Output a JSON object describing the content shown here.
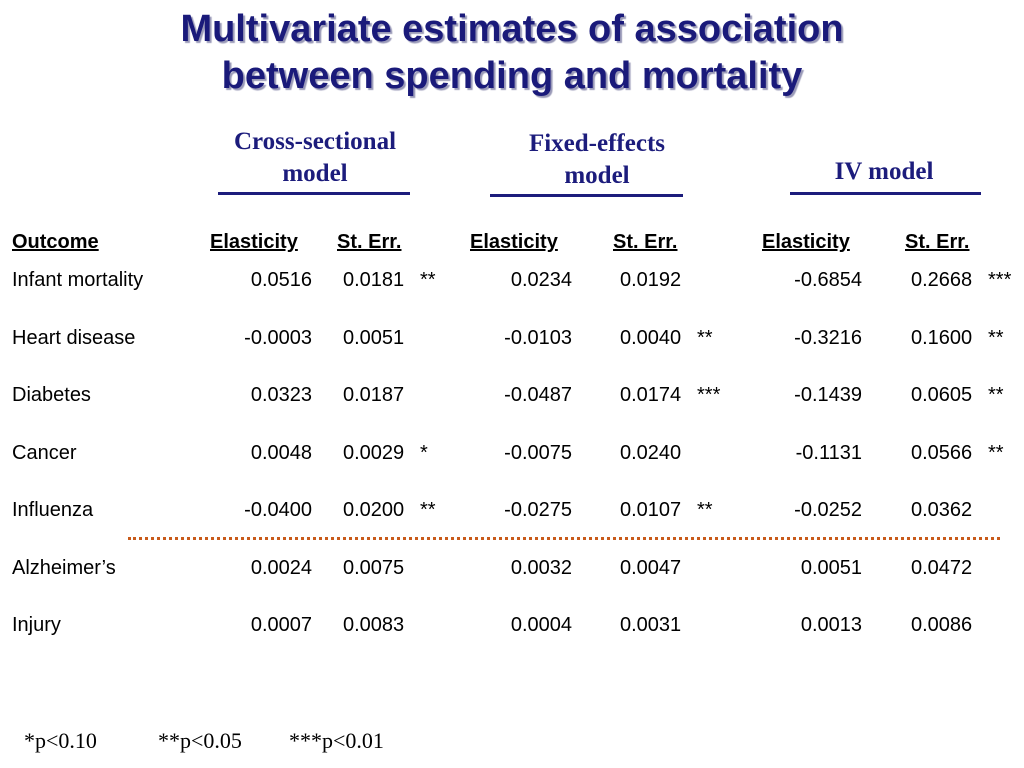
{
  "title": [
    "Multivariate estimates of association",
    "between spending and mortality"
  ],
  "models": [
    {
      "lines": [
        "Cross-sectional",
        "model"
      ]
    },
    {
      "lines": [
        "Fixed-effects",
        "model"
      ]
    },
    {
      "lines": [
        "IV  model"
      ]
    }
  ],
  "headers": [
    "Outcome",
    "Elasticity",
    "St. Err.",
    "Elasticity",
    "St. Err.",
    "Elasticity",
    "St. Err."
  ],
  "rows": [
    {
      "outcome": "Infant mortality",
      "cs_e": "0.0516",
      "cs_se": "0.0181",
      "cs_sig": "**",
      "fe_e": "0.0234",
      "fe_se": "0.0192",
      "fe_sig": "",
      "iv_e": "-0.6854",
      "iv_se": "0.2668",
      "iv_sig": "***"
    },
    {
      "outcome": "Heart disease",
      "cs_e": "-0.0003",
      "cs_se": "0.0051",
      "cs_sig": "",
      "fe_e": "-0.0103",
      "fe_se": "0.0040",
      "fe_sig": "**",
      "iv_e": "-0.3216",
      "iv_se": "0.1600",
      "iv_sig": "**"
    },
    {
      "outcome": "Diabetes",
      "cs_e": "0.0323",
      "cs_se": "0.0187",
      "cs_sig": "",
      "fe_e": "-0.0487",
      "fe_se": "0.0174",
      "fe_sig": "***",
      "iv_e": "-0.1439",
      "iv_se": "0.0605",
      "iv_sig": "**"
    },
    {
      "outcome": "Cancer",
      "cs_e": "0.0048",
      "cs_se": "0.0029",
      "cs_sig": "*",
      "fe_e": "-0.0075",
      "fe_se": "0.0240",
      "fe_sig": "",
      "iv_e": "-0.1131",
      "iv_se": "0.0566",
      "iv_sig": "**"
    },
    {
      "outcome": "Influenza",
      "cs_e": "-0.0400",
      "cs_se": "0.0200",
      "cs_sig": "**",
      "fe_e": "-0.0275",
      "fe_se": "0.0107",
      "fe_sig": "**",
      "iv_e": "-0.0252",
      "iv_se": "0.0362",
      "iv_sig": ""
    },
    {
      "outcome": "Alzheimer’s",
      "cs_e": "0.0024",
      "cs_se": "0.0075",
      "cs_sig": "",
      "fe_e": "0.0032",
      "fe_se": "0.0047",
      "fe_sig": "",
      "iv_e": "0.0051",
      "iv_se": "0.0472",
      "iv_sig": ""
    },
    {
      "outcome": "Injury",
      "cs_e": "0.0007",
      "cs_se": "0.0083",
      "cs_sig": "",
      "fe_e": "0.0004",
      "fe_se": "0.0031",
      "fe_sig": "",
      "iv_e": "0.0013",
      "iv_se": "0.0086",
      "iv_sig": ""
    }
  ],
  "footnotes": [
    "*p<0.10",
    "**p<0.05",
    "***p<0.01"
  ],
  "colors": {
    "title": "#1a1a7a",
    "model": "#1c1c7c",
    "separator": "#c85a1a"
  }
}
